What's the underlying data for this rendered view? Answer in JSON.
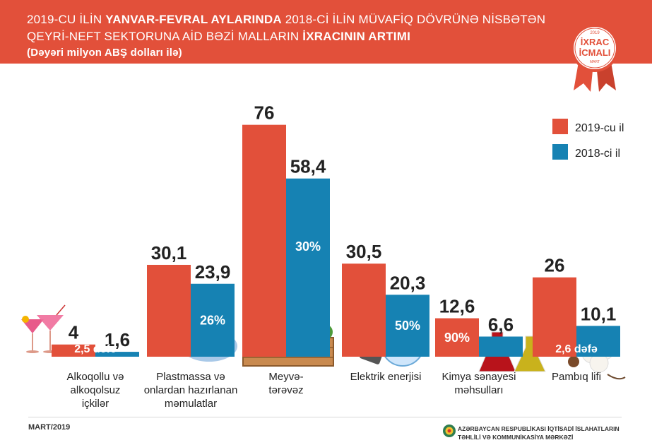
{
  "header": {
    "line1_a": "2019-CU İLİN ",
    "line1_b": "YANVAR-FEVRAL AYLARINDA",
    "line1_c": "  2018-Cİ İLİN MÜVAFİQ DÖVRÜNƏ NİSBƏTƏN",
    "line2_a": "QEYRİ-NEFT SEKTORUNA AİD BƏZİ MALLARIN ",
    "line2_b": "İXRACININ ARTIMI",
    "line3": "(Dəyəri milyon ABŞ dolları ilə)"
  },
  "badge": {
    "year": "2019",
    "line1": "İXRAC",
    "line2": "İCMALI",
    "month": "MART"
  },
  "footer": {
    "date": "MART/2019",
    "org_line1": "AZƏRBAYCAN RESPUBLİKASI İQTİSADİ İSLAHATLARIN",
    "org_line2": "TƏHLİLİ VƏ KOMMUNİKASİYA MƏRKƏZİ"
  },
  "colors": {
    "y2019": "#e2503a",
    "y2018": "#1682b3",
    "header": "#e2503a"
  },
  "chart_data": {
    "type": "bar",
    "categories": [
      [
        "Alkoqollu və",
        "alkoqolsuz",
        "içkilər"
      ],
      [
        "Plastmassa və",
        "onlardan hazırlanan",
        "məmulatlar"
      ],
      [
        "Meyvə-",
        "tərəvəz"
      ],
      [
        "Elektrik enerjisi"
      ],
      [
        "Kimya sənayesi",
        "məhsulları"
      ],
      [
        "Pambıq lifi"
      ]
    ],
    "series": [
      {
        "name": "2019-cu il",
        "values": [
          4,
          30.1,
          76,
          30.5,
          12.6,
          26
        ]
      },
      {
        "name": "2018-ci il",
        "values": [
          1.6,
          23.9,
          58.4,
          20.3,
          6.6,
          10.1
        ]
      }
    ],
    "value_labels_2019": [
      "4",
      "30,1",
      "76",
      "30,5",
      "12,6",
      "26"
    ],
    "value_labels_2018": [
      "1,6",
      "23,9",
      "58,4",
      "20,3",
      "6,6",
      "10,1"
    ],
    "growth_labels": [
      "2,5 dəfə",
      "26%",
      "30%",
      "50%",
      "90%",
      "2,6 dəfə"
    ],
    "legend_placement": "top-right",
    "grid": false
  }
}
